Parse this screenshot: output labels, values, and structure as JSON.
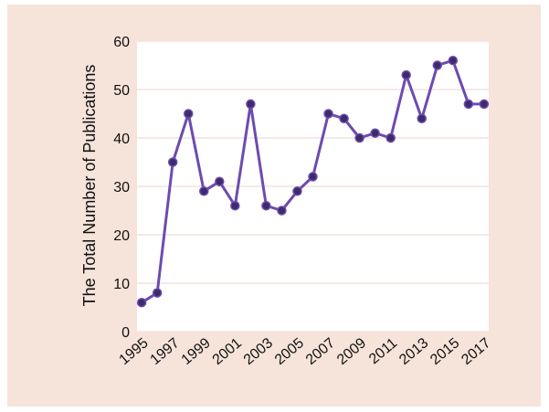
{
  "chart_data": {
    "type": "line",
    "title": "",
    "xlabel": "",
    "ylabel": "The Total Number of Publications",
    "x": [
      1995,
      1996,
      1997,
      1998,
      1999,
      2000,
      2001,
      2002,
      2003,
      2004,
      2005,
      2006,
      2007,
      2008,
      2009,
      2010,
      2011,
      2012,
      2013,
      2014,
      2015,
      2016,
      2017
    ],
    "x_tick_labels": [
      "1995",
      "1997",
      "1999",
      "2001",
      "2003",
      "2005",
      "2007",
      "2009",
      "2011",
      "2013",
      "2015",
      "2017"
    ],
    "y_tick_labels": [
      "0",
      "10",
      "20",
      "30",
      "40",
      "50",
      "60"
    ],
    "series": [
      {
        "values": [
          6,
          8,
          35,
          45,
          29,
          31,
          26,
          47,
          26,
          25,
          29,
          32,
          45,
          44,
          40,
          41,
          40,
          53,
          44,
          55,
          56,
          47,
          47
        ]
      }
    ],
    "ylim": [
      0,
      60
    ],
    "grid": true,
    "colors": {
      "line": "#6d4bb0",
      "marker": "#3d2c6a",
      "grid": "#f4e4dd",
      "plot_bg": "#ffffff",
      "background": "#f6e3d9"
    }
  }
}
